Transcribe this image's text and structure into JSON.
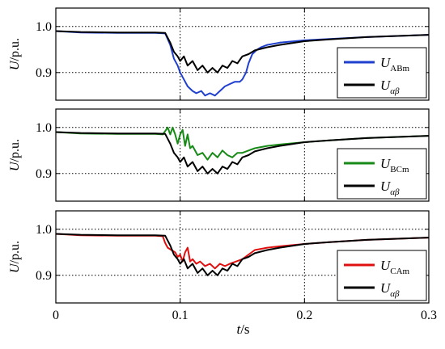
{
  "chart_data": [
    {
      "type": "line",
      "xlim": [
        0,
        0.3
      ],
      "ylim": [
        0.84,
        1.04
      ],
      "ylabel": "U/p.u.",
      "yticks": [
        "0.9",
        "1.0"
      ],
      "grid": "dotted, y=0.9 & y=1.0, x=0.1 & x=0.2",
      "legend_position": "bottom-right",
      "series": [
        {
          "name": "U_ABm",
          "name_base": "U",
          "name_sub": "ABm",
          "color": "#1f3fcf",
          "x": [
            0,
            0.02,
            0.05,
            0.08,
            0.088,
            0.092,
            0.095,
            0.098,
            0.1,
            0.103,
            0.106,
            0.11,
            0.113,
            0.117,
            0.12,
            0.124,
            0.128,
            0.132,
            0.136,
            0.14,
            0.144,
            0.148,
            0.15,
            0.153,
            0.155,
            0.158,
            0.162,
            0.165,
            0.17,
            0.18,
            0.2,
            0.22,
            0.25,
            0.3
          ],
          "y": [
            0.99,
            0.987,
            0.986,
            0.986,
            0.985,
            0.96,
            0.93,
            0.915,
            0.9,
            0.885,
            0.87,
            0.86,
            0.855,
            0.86,
            0.85,
            0.855,
            0.85,
            0.86,
            0.87,
            0.875,
            0.88,
            0.88,
            0.885,
            0.9,
            0.92,
            0.94,
            0.95,
            0.955,
            0.96,
            0.965,
            0.97,
            0.973,
            0.977,
            0.982
          ]
        },
        {
          "name": "U_αβ",
          "name_base": "U",
          "name_sub": "αβ",
          "color": "#000000",
          "x": [
            0,
            0.02,
            0.05,
            0.08,
            0.088,
            0.092,
            0.095,
            0.098,
            0.1,
            0.103,
            0.106,
            0.11,
            0.114,
            0.118,
            0.122,
            0.126,
            0.13,
            0.134,
            0.138,
            0.142,
            0.146,
            0.15,
            0.155,
            0.16,
            0.17,
            0.18,
            0.2,
            0.22,
            0.25,
            0.3
          ],
          "y": [
            0.99,
            0.988,
            0.987,
            0.987,
            0.986,
            0.965,
            0.945,
            0.935,
            0.925,
            0.935,
            0.915,
            0.925,
            0.905,
            0.915,
            0.9,
            0.91,
            0.9,
            0.915,
            0.91,
            0.925,
            0.92,
            0.935,
            0.94,
            0.948,
            0.955,
            0.96,
            0.968,
            0.972,
            0.977,
            0.982
          ]
        }
      ]
    },
    {
      "type": "line",
      "xlim": [
        0,
        0.3
      ],
      "ylim": [
        0.84,
        1.04
      ],
      "ylabel": "U/p.u.",
      "yticks": [
        "0.9",
        "1.0"
      ],
      "grid": "dotted, y=0.9 & y=1.0, x=0.1 & x=0.2",
      "legend_position": "bottom-right",
      "series": [
        {
          "name": "U_BCm",
          "name_base": "U",
          "name_sub": "BCm",
          "color": "#178a17",
          "x": [
            0,
            0.02,
            0.05,
            0.08,
            0.086,
            0.09,
            0.092,
            0.094,
            0.096,
            0.098,
            0.1,
            0.102,
            0.104,
            0.106,
            0.108,
            0.11,
            0.114,
            0.118,
            0.122,
            0.126,
            0.13,
            0.134,
            0.138,
            0.142,
            0.146,
            0.15,
            0.155,
            0.16,
            0.17,
            0.18,
            0.2,
            0.22,
            0.25,
            0.3
          ],
          "y": [
            0.99,
            0.987,
            0.986,
            0.986,
            0.985,
            1.0,
            0.985,
            1.0,
            0.985,
            0.965,
            0.985,
            0.995,
            0.96,
            0.985,
            0.955,
            0.96,
            0.94,
            0.945,
            0.93,
            0.945,
            0.935,
            0.95,
            0.94,
            0.935,
            0.945,
            0.945,
            0.95,
            0.955,
            0.96,
            0.963,
            0.968,
            0.972,
            0.977,
            0.982
          ]
        },
        {
          "name": "U_αβ",
          "name_base": "U",
          "name_sub": "αβ",
          "color": "#000000",
          "x": [
            0,
            0.02,
            0.05,
            0.08,
            0.088,
            0.092,
            0.095,
            0.098,
            0.1,
            0.103,
            0.106,
            0.11,
            0.114,
            0.118,
            0.122,
            0.126,
            0.13,
            0.134,
            0.138,
            0.142,
            0.146,
            0.15,
            0.155,
            0.16,
            0.17,
            0.18,
            0.2,
            0.22,
            0.25,
            0.3
          ],
          "y": [
            0.99,
            0.988,
            0.987,
            0.987,
            0.986,
            0.965,
            0.945,
            0.935,
            0.925,
            0.935,
            0.915,
            0.925,
            0.905,
            0.915,
            0.9,
            0.91,
            0.9,
            0.915,
            0.91,
            0.925,
            0.92,
            0.935,
            0.94,
            0.948,
            0.955,
            0.96,
            0.968,
            0.972,
            0.977,
            0.982
          ]
        }
      ]
    },
    {
      "type": "line",
      "xlim": [
        0,
        0.3
      ],
      "ylim": [
        0.84,
        1.04
      ],
      "ylabel": "U/p.u.",
      "yticks": [
        "0.9",
        "1.0"
      ],
      "xlabel": "t/s",
      "xticks": [
        "0",
        "0.1",
        "0.2",
        "0.3"
      ],
      "grid": "dotted, y=0.9 & y=1.0, x=0.1 & x=0.2",
      "legend_position": "bottom-right",
      "series": [
        {
          "name": "U_CAm",
          "name_base": "U",
          "name_sub": "CAm",
          "color": "#e01010",
          "x": [
            0,
            0.02,
            0.05,
            0.08,
            0.086,
            0.088,
            0.09,
            0.093,
            0.096,
            0.098,
            0.1,
            0.102,
            0.104,
            0.106,
            0.108,
            0.11,
            0.113,
            0.116,
            0.12,
            0.124,
            0.128,
            0.132,
            0.136,
            0.14,
            0.145,
            0.15,
            0.155,
            0.16,
            0.17,
            0.18,
            0.2,
            0.22,
            0.25,
            0.3
          ],
          "y": [
            0.99,
            0.987,
            0.986,
            0.986,
            0.985,
            0.97,
            0.96,
            0.955,
            0.95,
            0.94,
            0.945,
            0.93,
            0.95,
            0.96,
            0.93,
            0.935,
            0.925,
            0.93,
            0.92,
            0.925,
            0.915,
            0.925,
            0.92,
            0.925,
            0.93,
            0.935,
            0.945,
            0.955,
            0.96,
            0.963,
            0.968,
            0.972,
            0.977,
            0.982
          ]
        },
        {
          "name": "U_αβ",
          "name_base": "U",
          "name_sub": "αβ",
          "color": "#000000",
          "x": [
            0,
            0.02,
            0.05,
            0.08,
            0.088,
            0.092,
            0.095,
            0.098,
            0.1,
            0.103,
            0.106,
            0.11,
            0.114,
            0.118,
            0.122,
            0.126,
            0.13,
            0.134,
            0.138,
            0.142,
            0.146,
            0.15,
            0.155,
            0.16,
            0.17,
            0.18,
            0.2,
            0.22,
            0.25,
            0.3
          ],
          "y": [
            0.99,
            0.988,
            0.987,
            0.987,
            0.986,
            0.965,
            0.945,
            0.935,
            0.925,
            0.935,
            0.915,
            0.925,
            0.905,
            0.915,
            0.9,
            0.91,
            0.9,
            0.915,
            0.91,
            0.925,
            0.92,
            0.935,
            0.94,
            0.948,
            0.955,
            0.96,
            0.968,
            0.972,
            0.977,
            0.982
          ]
        }
      ]
    }
  ]
}
